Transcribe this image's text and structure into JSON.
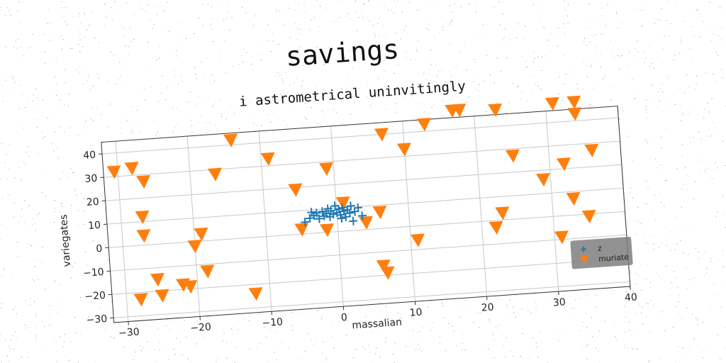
{
  "chart_data": {
    "type": "scatter",
    "suptitle": "savings",
    "title": "i astrometrical uninvitingly",
    "xlabel": "massalian",
    "ylabel": "variegates",
    "xlim": [
      -32,
      40
    ],
    "ylim": [
      -32,
      45
    ],
    "xticks": [
      -30,
      -20,
      -10,
      0,
      10,
      20,
      30,
      40
    ],
    "yticks": [
      -30,
      -20,
      -10,
      0,
      10,
      20,
      30,
      40
    ],
    "grid": true,
    "legend_position": "lower-right",
    "series": [
      {
        "name": "z",
        "marker": "plus",
        "color": "#1f77b4",
        "points": [
          [
            -4.5,
            5
          ],
          [
            -3.8,
            6.5
          ],
          [
            -3.2,
            7.5
          ],
          [
            -2.8,
            8.5
          ],
          [
            -2.5,
            6
          ],
          [
            -2.0,
            9
          ],
          [
            -1.8,
            7
          ],
          [
            -1.5,
            8
          ],
          [
            -1.2,
            10
          ],
          [
            -1.0,
            6.5
          ],
          [
            -0.8,
            9
          ],
          [
            -0.5,
            7.5
          ],
          [
            -0.2,
            11
          ],
          [
            0.0,
            8
          ],
          [
            0.3,
            9.5
          ],
          [
            0.5,
            7
          ],
          [
            0.8,
            10
          ],
          [
            1.0,
            8.5
          ],
          [
            1.2,
            6
          ],
          [
            1.5,
            9
          ],
          [
            1.8,
            7.5
          ],
          [
            2.0,
            10.5
          ],
          [
            2.5,
            8
          ],
          [
            3.0,
            9.5
          ],
          [
            3.5,
            6
          ],
          [
            -3.5,
            9
          ],
          [
            0.6,
            5.5
          ],
          [
            2.2,
            4
          ]
        ]
      },
      {
        "name": "muriate",
        "marker": "triangle-down",
        "color": "#ff7f0e",
        "points": [
          [
            -30.5,
            32
          ],
          [
            -28,
            33
          ],
          [
            -26.5,
            27
          ],
          [
            -27,
            12
          ],
          [
            -27,
            4
          ],
          [
            -28,
            -23
          ],
          [
            -25.5,
            -15
          ],
          [
            -25,
            -22
          ],
          [
            -22,
            -18
          ],
          [
            -21,
            -19
          ],
          [
            -20,
            -2
          ],
          [
            -19,
            3
          ],
          [
            -18.5,
            -13
          ],
          [
            -16.5,
            28
          ],
          [
            -14,
            42
          ],
          [
            -12,
            -24
          ],
          [
            -9,
            33
          ],
          [
            -5.5,
            19
          ],
          [
            -5,
            2
          ],
          [
            -1.5,
            1
          ],
          [
            -1,
            27
          ],
          [
            1,
            12
          ],
          [
            4,
            3
          ],
          [
            6,
            7
          ],
          [
            6,
            -16
          ],
          [
            6.5,
            -19
          ],
          [
            7,
            40
          ],
          [
            10,
            33
          ],
          [
            11,
            -6
          ],
          [
            13,
            43
          ],
          [
            17,
            48
          ],
          [
            18,
            48
          ],
          [
            23,
            47
          ],
          [
            22,
            -3
          ],
          [
            23,
            3
          ],
          [
            25,
            27
          ],
          [
            29,
            16
          ],
          [
            31,
            48
          ],
          [
            31,
            -9
          ],
          [
            32,
            22
          ],
          [
            33,
            7
          ],
          [
            34,
            48
          ],
          [
            34,
            43
          ],
          [
            35,
            -1
          ],
          [
            36,
            27
          ]
        ]
      }
    ]
  }
}
